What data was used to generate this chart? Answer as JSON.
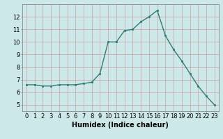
{
  "x": [
    0,
    1,
    2,
    3,
    4,
    5,
    6,
    7,
    8,
    9,
    10,
    11,
    12,
    13,
    14,
    15,
    16,
    17,
    18,
    19,
    20,
    21,
    22,
    23
  ],
  "y": [
    6.6,
    6.6,
    6.5,
    6.5,
    6.6,
    6.6,
    6.6,
    6.7,
    6.8,
    7.5,
    10.0,
    10.0,
    10.9,
    11.0,
    11.6,
    12.0,
    12.5,
    10.5,
    9.4,
    8.5,
    7.5,
    6.5,
    5.7,
    5.0
  ],
  "line_color": "#2e7d72",
  "marker_color": "#2e7d72",
  "bg_color": "#cce8e8",
  "grid_major_color": "#b0c8c8",
  "grid_minor_color": "#ddb0b0",
  "xlabel": "Humidex (Indice chaleur)",
  "xlabel_fontsize": 7,
  "tick_fontsize": 6,
  "ylim": [
    4.5,
    13.0
  ],
  "xlim": [
    -0.5,
    23.5
  ],
  "yticks": [
    5,
    6,
    7,
    8,
    9,
    10,
    11,
    12
  ],
  "xticks": [
    0,
    1,
    2,
    3,
    4,
    5,
    6,
    7,
    8,
    9,
    10,
    11,
    12,
    13,
    14,
    15,
    16,
    17,
    18,
    19,
    20,
    21,
    22,
    23
  ]
}
